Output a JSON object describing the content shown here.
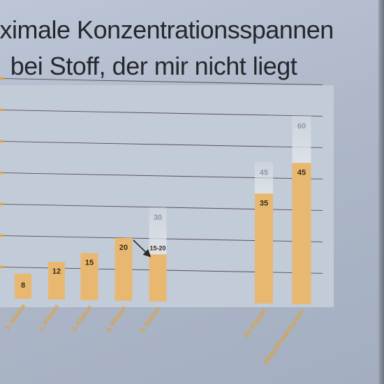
{
  "title": {
    "line1": "aximale Konzentrationsspannen",
    "line2": "bei Stoff, der mir nicht liegt"
  },
  "colors": {
    "bar": "#e8b871",
    "ghost": "#dde2e8",
    "label_bar": "#3b2c16",
    "label_ghost": "#8e96a3",
    "tick": "#e0a23a",
    "grid": "#4a3a3a",
    "arrow": "#2a2a2a"
  },
  "chart_data": {
    "type": "bar",
    "categories": [
      "1. Klasse",
      "2. Klasse",
      "3. Klasse",
      "4. Klasse",
      "5. Klasse",
      "10. Klasse",
      "Abitur/Erwachsener"
    ],
    "series": [
      {
        "values": [
          8,
          12,
          15,
          20,
          15,
          35,
          45
        ]
      },
      {
        "values": [
          null,
          null,
          null,
          null,
          30,
          45,
          60
        ]
      }
    ],
    "data_labels": [
      "8",
      "12",
      "15",
      "20",
      "15-20",
      "35",
      "45"
    ],
    "upper_labels": [
      null,
      null,
      null,
      null,
      "30",
      "45",
      "60"
    ],
    "annotations": [
      {
        "type": "arrow",
        "from_category": "4. Klasse",
        "to_category": "5. Klasse",
        "value": 20
      }
    ],
    "ylim": [
      0,
      70
    ],
    "grid": true,
    "gridlines": [
      10,
      20,
      30,
      40,
      50,
      60,
      70
    ],
    "legend": "none",
    "xlabel": "",
    "ylabel": ""
  }
}
